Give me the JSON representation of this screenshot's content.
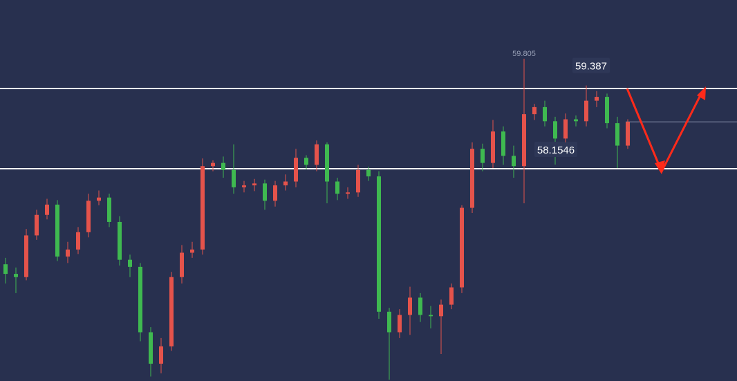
{
  "chart_data": {
    "type": "candlestick",
    "ylim": [
      54.78,
      60.72
    ],
    "up_color": "#e5534b",
    "down_color": "#3fb950",
    "levels": [
      59.34,
      58.09
    ],
    "level_color": "#ffffff",
    "last_price": 58.82,
    "series": {
      "open": [
        56.6,
        56.45,
        56.4,
        57.05,
        57.37,
        57.53,
        56.72,
        56.83,
        57.1,
        57.59,
        57.64,
        57.26,
        56.67,
        56.56,
        55.54,
        55.05,
        55.32,
        56.4,
        56.78,
        56.83,
        58.13,
        58.18,
        58.07,
        57.8,
        57.83,
        57.86,
        57.59,
        57.83,
        57.89,
        58.26,
        58.15,
        58.47,
        57.89,
        57.7,
        57.72,
        58.07,
        57.97,
        55.86,
        55.54,
        55.81,
        56.08,
        55.81,
        55.79,
        55.97,
        56.24,
        57.48,
        58.4,
        58.18,
        58.67,
        58.29,
        58.13,
        58.94,
        59.05,
        58.83,
        58.56,
        58.86,
        58.83,
        59.15,
        59.21,
        58.8,
        58.45
      ],
      "high": [
        56.7,
        56.55,
        57.15,
        57.45,
        57.62,
        57.6,
        56.95,
        57.18,
        57.7,
        57.75,
        57.7,
        57.35,
        56.75,
        56.62,
        55.62,
        55.45,
        56.48,
        56.9,
        56.95,
        58.25,
        58.22,
        58.28,
        58.47,
        57.9,
        57.93,
        57.92,
        57.9,
        58.0,
        58.4,
        58.3,
        58.53,
        58.5,
        57.95,
        57.8,
        58.15,
        58.12,
        58.05,
        55.92,
        55.9,
        56.25,
        56.15,
        55.95,
        56.05,
        56.3,
        57.52,
        58.5,
        58.48,
        58.85,
        58.75,
        58.45,
        59.805,
        59.1,
        59.15,
        58.9,
        58.95,
        58.92,
        59.387,
        59.3,
        59.26,
        58.9,
        58.86
      ],
      "low": [
        56.3,
        56.15,
        56.35,
        56.98,
        57.3,
        56.65,
        56.62,
        56.76,
        57.02,
        57.52,
        57.18,
        56.58,
        56.4,
        55.4,
        54.85,
        54.9,
        55.25,
        56.3,
        56.7,
        56.75,
        58.05,
        57.95,
        57.7,
        57.72,
        57.74,
        57.45,
        57.5,
        57.75,
        57.8,
        58.08,
        58.05,
        57.55,
        57.6,
        57.62,
        57.65,
        57.9,
        55.75,
        54.8,
        55.45,
        55.5,
        55.7,
        55.6,
        55.2,
        55.9,
        56.15,
        57.4,
        58.05,
        58.1,
        58.15,
        57.95,
        57.55,
        58.85,
        58.75,
        58.1546,
        58.5,
        58.75,
        58.75,
        59.05,
        58.72,
        58.1,
        58.4
      ],
      "close": [
        56.45,
        56.4,
        57.05,
        57.37,
        57.53,
        56.72,
        56.83,
        57.1,
        57.59,
        57.64,
        57.26,
        56.67,
        56.56,
        55.54,
        55.05,
        55.32,
        56.4,
        56.78,
        56.83,
        58.13,
        58.18,
        58.07,
        57.8,
        57.83,
        57.86,
        57.59,
        57.83,
        57.89,
        58.26,
        58.15,
        58.47,
        57.89,
        57.7,
        57.72,
        58.07,
        57.97,
        55.86,
        55.54,
        55.81,
        56.08,
        55.81,
        55.79,
        55.97,
        56.24,
        57.48,
        58.4,
        58.18,
        58.67,
        58.29,
        58.13,
        58.94,
        59.05,
        58.83,
        58.56,
        58.86,
        58.83,
        59.15,
        59.21,
        58.8,
        58.45,
        58.82
      ],
      "high_labels": [
        null,
        null,
        null,
        null,
        null,
        null,
        null,
        null,
        null,
        null,
        null,
        null,
        null,
        null,
        null,
        null,
        null,
        null,
        null,
        null,
        null,
        null,
        null,
        null,
        null,
        null,
        null,
        null,
        null,
        null,
        null,
        null,
        null,
        null,
        null,
        null,
        null,
        null,
        null,
        null,
        null,
        null,
        null,
        null,
        null,
        null,
        null,
        null,
        null,
        null,
        "59.805",
        null,
        null,
        null,
        null,
        null,
        "59.387",
        null,
        null,
        null,
        null
      ],
      "low_labels": [
        null,
        null,
        null,
        null,
        null,
        null,
        null,
        null,
        null,
        null,
        null,
        null,
        null,
        null,
        null,
        null,
        null,
        null,
        null,
        null,
        null,
        null,
        null,
        null,
        null,
        null,
        null,
        null,
        null,
        null,
        null,
        null,
        null,
        null,
        null,
        null,
        null,
        null,
        null,
        null,
        null,
        null,
        null,
        null,
        null,
        null,
        null,
        null,
        null,
        null,
        null,
        null,
        null,
        "58.1546",
        null,
        null,
        null,
        null,
        null,
        null,
        null
      ]
    }
  }
}
